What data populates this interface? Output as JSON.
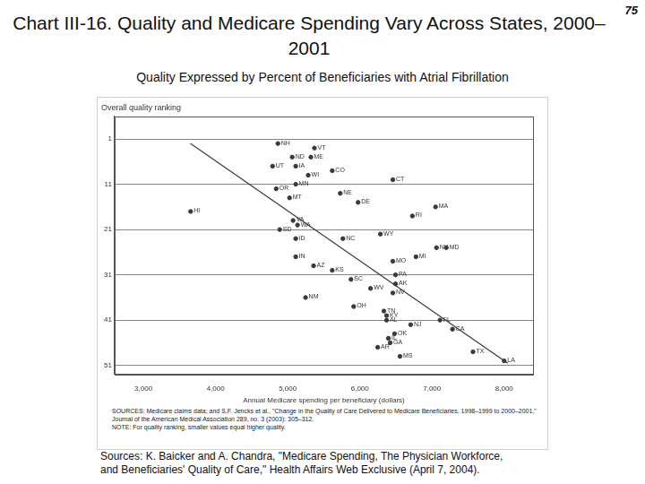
{
  "page_number": "75",
  "title": "Chart III-16. Quality and Medicare Spending Vary Across States, 2000–2001",
  "subtitle": "Quality Expressed by Percent of Beneficiaries with Atrial Fibrillation",
  "chart_data": {
    "type": "scatter",
    "y_label": "Overall quality ranking",
    "x_label": "Annual Medicare spending per beneficiary (dollars)",
    "xlim": [
      2600,
      8400
    ],
    "xticks": [
      {
        "value": 3000,
        "label": "3,000"
      },
      {
        "value": 4000,
        "label": "4,000"
      },
      {
        "value": 5000,
        "label": "5,000"
      },
      {
        "value": 6000,
        "label": "6,000"
      },
      {
        "value": 7000,
        "label": "7,000"
      },
      {
        "value": 8000,
        "label": "8,000"
      }
    ],
    "ylim": [
      53,
      -4
    ],
    "yticks": [
      1,
      11,
      21,
      31,
      41,
      51
    ],
    "grid": true,
    "series": [
      {
        "type": "scatter",
        "color": "#3a3a3a",
        "marker": "circle",
        "labels": [
          "NH",
          "VT",
          "ME",
          "ND",
          "UT",
          "IA",
          "CO",
          "WI",
          "CT",
          "MN",
          "OR",
          "NE",
          "MT",
          "DE",
          "MA",
          "HI",
          "RI",
          "VA",
          "WA",
          "SD",
          "WY",
          "ID",
          "NC",
          "NY",
          "MD",
          "MI",
          "IN",
          "MO",
          "AZ",
          "KS",
          "PA",
          "AK",
          "SC",
          "WV",
          "NV",
          "NM",
          "OH",
          "TN",
          "KY",
          "AL",
          "FL",
          "NJ",
          "OK",
          "CA",
          "IL",
          "GA",
          "AR",
          "MS",
          "TX",
          "LA"
        ],
        "x": [
          4864,
          5370,
          5321,
          5062,
          4790,
          5111,
          5617,
          5284,
          6457,
          5111,
          4840,
          5728,
          5025,
          5975,
          7049,
          3654,
          6728,
          5074,
          5136,
          4889,
          6284,
          5111,
          5765,
          7062,
          7198,
          6778,
          5111,
          6457,
          5358,
          5617,
          6494,
          6494,
          5877,
          6148,
          6457,
          5247,
          5914,
          6333,
          6370,
          6370,
          7111,
          6704,
          6481,
          7284,
          6395,
          6420,
          6247,
          6556,
          7568,
          8000
        ],
        "values": [
          2,
          3,
          5,
          5,
          7,
          7,
          8,
          9,
          10,
          11,
          12,
          13,
          14,
          15,
          16,
          17,
          18,
          19,
          20,
          21,
          22,
          23,
          23,
          25,
          25,
          27,
          27,
          28,
          29,
          30,
          31,
          33,
          32,
          34,
          35,
          36,
          38,
          39,
          40,
          41,
          41,
          42,
          44,
          43,
          45,
          46,
          47,
          49,
          48,
          50
        ]
      },
      {
        "type": "line",
        "color": "#3a3a3a",
        "line_style": "solid",
        "x": [
          3650,
          8050
        ],
        "values": [
          2,
          50.5
        ]
      }
    ]
  },
  "notes": [
    "SOURCES: Medicare claims data; and S.F. Jencks et al., \"Change in the Quality of Care Delivered to Medicare Beneficiaries, 1998–1999 to 2000–2001,\" Journal of the American Medical Association 289, no. 3 (2003): 305–312.",
    "NOTE: For quality ranking, smaller values equal higher quality."
  ],
  "source": "Sources: K. Baicker and A. Chandra, \"Medicare Spending, The Physician Workforce, and Beneficiaries' Quality of Care,\" Health Affairs Web Exclusive (April 7, 2004)."
}
